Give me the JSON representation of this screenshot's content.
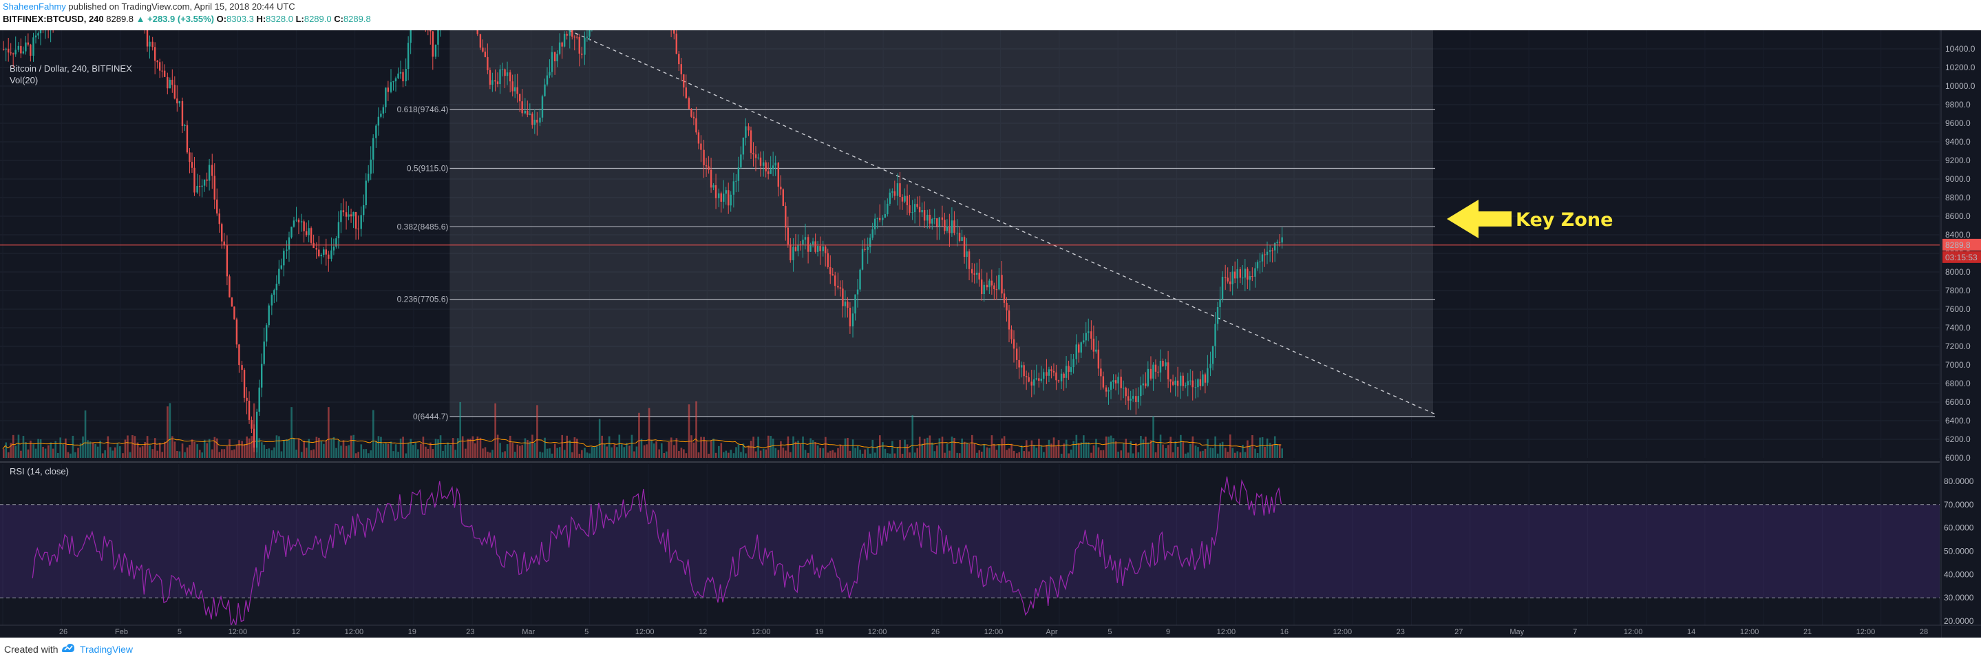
{
  "header": {
    "author": "ShaheenFahmy",
    "publish_text": " published on TradingView.com, April 15, 2018 20:44 UTC",
    "symbol": "BITFINEX:BTCUSD, 240",
    "last": "8289.8",
    "change": "▲ +283.9 (+3.55%)",
    "o_label": "O:",
    "o_value": "8303.3",
    "h_label": "H:",
    "h_value": "8328.0",
    "l_label": "L:",
    "l_value": "8289.0",
    "c_label": "C:",
    "c_value": "8289.8"
  },
  "legend": {
    "title": "Bitcoin / Dollar, 240, BITFINEX",
    "volume": "Vol(20)",
    "rsi": "RSI (14, close)"
  },
  "annotation": {
    "key_zone": "Key Zone"
  },
  "colors": {
    "background": "#131722",
    "candle_up": "#26a69a",
    "candle_down": "#ef5350",
    "rsi_line": "#9c27b0",
    "key_zone": "#ffeb3b",
    "price_line": "#ef5350"
  },
  "chart_data": {
    "type": "candlestick",
    "title": "Bitcoin / Dollar, 240, BITFINEX",
    "price_axis": {
      "ticks": [
        "10400.0",
        "10200.0",
        "10000.0",
        "9800.0",
        "9600.0",
        "9400.0",
        "9200.0",
        "9000.0",
        "8800.0",
        "8600.0",
        "8400.0",
        "8200.0",
        "8000.0",
        "7800.0",
        "7600.0",
        "7400.0",
        "7200.0",
        "7000.0",
        "6800.0",
        "6600.0",
        "6400.0",
        "6200.0",
        "6000.0"
      ],
      "range": [
        6000,
        10400
      ]
    },
    "current_price": "8289.8",
    "countdown": "03:15:53",
    "fibonacci": [
      {
        "label": "0.618(9746.4)",
        "value": 9746.4
      },
      {
        "label": "0.5(9115.0)",
        "value": 9115.0
      },
      {
        "label": "0.382(8485.6)",
        "value": 8485.6
      },
      {
        "label": "0.236(7705.6)",
        "value": 7705.6
      },
      {
        "label": "0(6444.7)",
        "value": 6444.7
      }
    ],
    "price_path": [
      [
        "2018-01-22",
        10400
      ],
      [
        "2018-01-24",
        10900
      ],
      [
        "2018-01-26",
        11100
      ],
      [
        "2018-01-28",
        11600
      ],
      [
        "2018-01-30",
        10400
      ],
      [
        "2018-02-01",
        9800
      ],
      [
        "2018-02-02",
        8900
      ],
      [
        "2018-02-03",
        9100
      ],
      [
        "2018-02-04",
        8200
      ],
      [
        "2018-02-05",
        7000
      ],
      [
        "2018-02-06",
        6200
      ],
      [
        "2018-02-07",
        7700
      ],
      [
        "2018-02-08",
        8200
      ],
      [
        "2018-02-09",
        8600
      ],
      [
        "2018-02-10",
        8300
      ],
      [
        "2018-02-11",
        8100
      ],
      [
        "2018-02-12",
        8700
      ],
      [
        "2018-02-13",
        8500
      ],
      [
        "2018-02-14",
        9400
      ],
      [
        "2018-02-15",
        10000
      ],
      [
        "2018-02-16",
        10100
      ],
      [
        "2018-02-17",
        11000
      ],
      [
        "2018-02-18",
        10400
      ],
      [
        "2018-02-19",
        11100
      ],
      [
        "2018-02-20",
        11400
      ],
      [
        "2018-02-21",
        10500
      ],
      [
        "2018-02-22",
        10000
      ],
      [
        "2018-02-23",
        10200
      ],
      [
        "2018-02-24",
        9700
      ],
      [
        "2018-02-25",
        9600
      ],
      [
        "2018-02-26",
        10300
      ],
      [
        "2018-02-27",
        10600
      ],
      [
        "2018-02-28",
        10400
      ],
      [
        "2018-03-01",
        10900
      ],
      [
        "2018-03-02",
        11000
      ],
      [
        "2018-03-03",
        11400
      ],
      [
        "2018-03-04",
        11500
      ],
      [
        "2018-03-05",
        11400
      ],
      [
        "2018-03-06",
        10700
      ],
      [
        "2018-03-07",
        9900
      ],
      [
        "2018-03-08",
        9300
      ],
      [
        "2018-03-09",
        8800
      ],
      [
        "2018-03-10",
        8800
      ],
      [
        "2018-03-11",
        9500
      ],
      [
        "2018-03-12",
        9100
      ],
      [
        "2018-03-13",
        9100
      ],
      [
        "2018-03-14",
        8200
      ],
      [
        "2018-03-15",
        8300
      ],
      [
        "2018-03-16",
        8300
      ],
      [
        "2018-03-17",
        7900
      ],
      [
        "2018-03-18",
        7500
      ],
      [
        "2018-03-19",
        8300
      ],
      [
        "2018-03-20",
        8600
      ],
      [
        "2018-03-21",
        8900
      ],
      [
        "2018-03-22",
        8700
      ],
      [
        "2018-03-23",
        8600
      ],
      [
        "2018-03-24",
        8500
      ],
      [
        "2018-03-25",
        8500
      ],
      [
        "2018-03-26",
        8100
      ],
      [
        "2018-03-27",
        7800
      ],
      [
        "2018-03-28",
        7900
      ],
      [
        "2018-03-29",
        7100
      ],
      [
        "2018-03-30",
        6800
      ],
      [
        "2018-03-31",
        6900
      ],
      [
        "2018-04-01",
        6800
      ],
      [
        "2018-04-02",
        7100
      ],
      [
        "2018-04-03",
        7400
      ],
      [
        "2018-04-04",
        6800
      ],
      [
        "2018-04-05",
        6800
      ],
      [
        "2018-04-06",
        6600
      ],
      [
        "2018-04-07",
        6900
      ],
      [
        "2018-04-08",
        7000
      ],
      [
        "2018-04-09",
        6800
      ],
      [
        "2018-04-10",
        6800
      ],
      [
        "2018-04-11",
        6900
      ],
      [
        "2018-04-12",
        7900
      ],
      [
        "2018-04-13",
        8000
      ],
      [
        "2018-04-14",
        8000
      ],
      [
        "2018-04-15",
        8290
      ]
    ],
    "rsi": {
      "levels": [
        70,
        30
      ],
      "ticks": [
        "80.0000",
        "70.0000",
        "60.0000",
        "50.0000",
        "40.0000",
        "30.0000",
        "20.0000"
      ],
      "path": [
        [
          "2018-01-22",
          45
        ],
        [
          "2018-01-26",
          55
        ],
        [
          "2018-01-30",
          35
        ],
        [
          "2018-02-02",
          30
        ],
        [
          "2018-02-05",
          22
        ],
        [
          "2018-02-07",
          55
        ],
        [
          "2018-02-10",
          50
        ],
        [
          "2018-02-14",
          65
        ],
        [
          "2018-02-17",
          72
        ],
        [
          "2018-02-19",
          75
        ],
        [
          "2018-02-21",
          55
        ],
        [
          "2018-02-24",
          45
        ],
        [
          "2018-02-27",
          58
        ],
        [
          "2018-03-01",
          65
        ],
        [
          "2018-03-04",
          70
        ],
        [
          "2018-03-07",
          40
        ],
        [
          "2018-03-09",
          30
        ],
        [
          "2018-03-11",
          55
        ],
        [
          "2018-03-14",
          35
        ],
        [
          "2018-03-16",
          45
        ],
        [
          "2018-03-18",
          32
        ],
        [
          "2018-03-19",
          52
        ],
        [
          "2018-03-21",
          62
        ],
        [
          "2018-03-24",
          55
        ],
        [
          "2018-03-27",
          40
        ],
        [
          "2018-03-30",
          28
        ],
        [
          "2018-04-01",
          35
        ],
        [
          "2018-04-03",
          58
        ],
        [
          "2018-04-05",
          40
        ],
        [
          "2018-04-08",
          52
        ],
        [
          "2018-04-10",
          46
        ],
        [
          "2018-04-11",
          50
        ],
        [
          "2018-04-12",
          78
        ],
        [
          "2018-04-14",
          72
        ],
        [
          "2018-04-15",
          70
        ]
      ]
    },
    "x_axis": {
      "ticks": [
        "26",
        "Feb",
        "5",
        "12:00",
        "12",
        "12:00",
        "19",
        "23",
        "Mar",
        "5",
        "12:00",
        "12",
        "12:00",
        "19",
        "12:00",
        "26",
        "12:00",
        "Apr",
        "5",
        "9",
        "12:00",
        "16",
        "12:00",
        "23",
        "27",
        "May",
        "7",
        "12:00",
        "14",
        "12:00",
        "21",
        "12:00",
        "28"
      ]
    }
  },
  "footer": {
    "created": "Created with",
    "brand": "TradingView"
  }
}
